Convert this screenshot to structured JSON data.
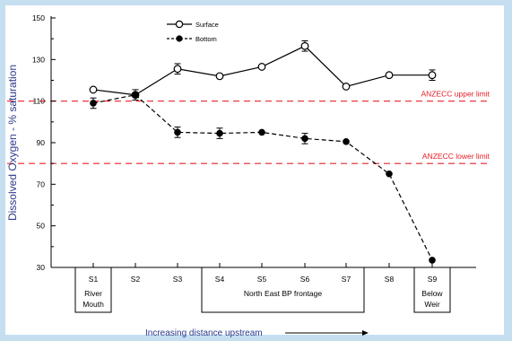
{
  "chart_data": {
    "type": "line",
    "ylabel": "Dissolved Oxygen - % saturation",
    "xlabel": "Increasing distance upstream",
    "ylim": [
      30,
      150
    ],
    "yticks": [
      30,
      50,
      70,
      90,
      110,
      130,
      150
    ],
    "categories": [
      "S1",
      "S2",
      "S3",
      "S4",
      "S5",
      "S6",
      "S7",
      "S8",
      "S9"
    ],
    "series": [
      {
        "name": "Surface",
        "marker": "open-circle",
        "line": "solid",
        "values": [
          115.5,
          113,
          125.5,
          122,
          126.5,
          136.5,
          117,
          122.5,
          122.5
        ],
        "errors": [
          0,
          0,
          2.5,
          0,
          0,
          2.5,
          0,
          0,
          2.5
        ]
      },
      {
        "name": "Bottom",
        "marker": "filled-circle",
        "line": "dashed",
        "values": [
          109,
          113,
          95,
          94.5,
          95,
          92,
          90.5,
          75,
          33.5
        ],
        "errors": [
          2.5,
          2.5,
          2.5,
          2.5,
          0,
          2.5,
          0,
          0,
          0
        ]
      }
    ],
    "reference_lines": [
      {
        "label": "ANZECC upper limit",
        "value": 110,
        "color": "#e8202a"
      },
      {
        "label": "ANZECC lower limit",
        "value": 80,
        "color": "#e8202a"
      }
    ],
    "site_groups": [
      {
        "lines": [
          "River",
          "Mouth"
        ],
        "from": 0,
        "to": 0
      },
      {
        "lines": [
          "North East  BP frontage"
        ],
        "from": 3,
        "to": 6
      },
      {
        "lines": [
          "Below",
          "Weir"
        ],
        "from": 8,
        "to": 8
      }
    ],
    "legend_position": "top-center",
    "grid": false,
    "colors": {
      "background": "#c5dff0",
      "plot": "#ffffff",
      "axis_text": "#2b3a8c",
      "ink": "#000000"
    }
  }
}
